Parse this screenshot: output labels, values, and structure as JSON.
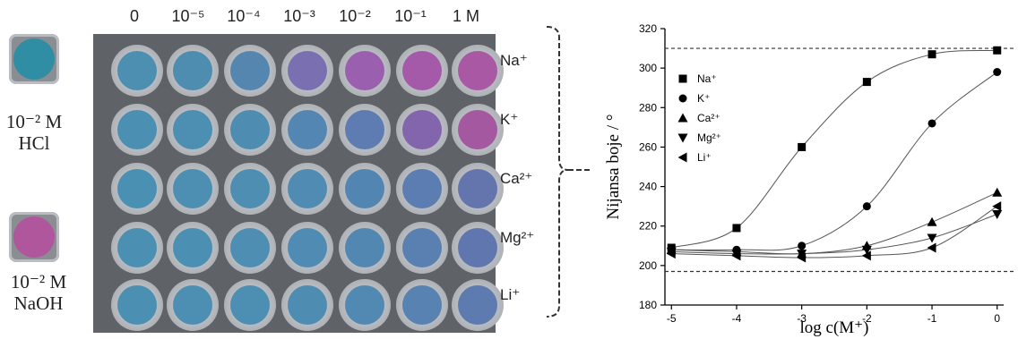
{
  "reference": {
    "hcl": {
      "line1": "10⁻² M",
      "line2": "HCl",
      "color": "#2f8ea3"
    },
    "naoh": {
      "line1": "10⁻² M",
      "line2": "NaOH",
      "color": "#b0569c"
    }
  },
  "plate": {
    "columns": [
      "0",
      "10⁻⁵",
      "10⁻⁴",
      "10⁻³",
      "10⁻²",
      "10⁻¹",
      "1 M"
    ],
    "rows": [
      {
        "ion": "Na⁺",
        "colors": [
          "#4d8fb1",
          "#4e8cb0",
          "#5586b0",
          "#7a6fb0",
          "#9a5fae",
          "#a45aa8",
          "#a958a4"
        ]
      },
      {
        "ion": "K⁺",
        "colors": [
          "#4b90b2",
          "#4c8fb2",
          "#4e8cb2",
          "#5386b3",
          "#5f7cb2",
          "#8265ad",
          "#a4589f"
        ]
      },
      {
        "ion": "Ca²⁺",
        "colors": [
          "#4a90b2",
          "#4c8fb2",
          "#4d8eb2",
          "#4f8bb2",
          "#5385b2",
          "#5b7db1",
          "#6474ad"
        ]
      },
      {
        "ion": "Mg²⁺",
        "colors": [
          "#4b90b2",
          "#4b90b2",
          "#4d8eb2",
          "#4f8bb2",
          "#5287b2",
          "#5980b1",
          "#6076ae"
        ]
      },
      {
        "ion": "Li⁺",
        "colors": [
          "#4b90b2",
          "#4c8fb2",
          "#4c8fb2",
          "#4e8cb2",
          "#5289b2",
          "#5782b1",
          "#5e7bb0"
        ]
      }
    ]
  },
  "chart_data": {
    "type": "scatter",
    "xlabel": "log c(M⁺)",
    "ylabel": "Nijansa boje / °",
    "xlim": [
      -5.1,
      0.1
    ],
    "ylim": [
      180,
      320
    ],
    "xticks": [
      "-5",
      "-4",
      "-3",
      "-2",
      "-1",
      "0"
    ],
    "yticks": [
      "180",
      "200",
      "220",
      "240",
      "260",
      "280",
      "300",
      "320"
    ],
    "reference_lines": [
      310,
      197
    ],
    "legend_position": "upper-left",
    "x": [
      -5,
      -4,
      -3,
      -2,
      -1,
      0
    ],
    "series": [
      {
        "name": "Na⁺",
        "marker": "square",
        "values": [
          209,
          219,
          260,
          293,
          307,
          309
        ]
      },
      {
        "name": "K⁺",
        "marker": "circle",
        "values": [
          208,
          208,
          210,
          230,
          272,
          298
        ]
      },
      {
        "name": "Ca²⁺",
        "marker": "triangle-up",
        "values": [
          208,
          207,
          206,
          210,
          222,
          237
        ]
      },
      {
        "name": "Mg²⁺",
        "marker": "triangle-down",
        "values": [
          207,
          206,
          206,
          208,
          214,
          226
        ]
      },
      {
        "name": "Li⁺",
        "marker": "triangle-left",
        "values": [
          206,
          205,
          204,
          205,
          209,
          230
        ]
      }
    ]
  }
}
